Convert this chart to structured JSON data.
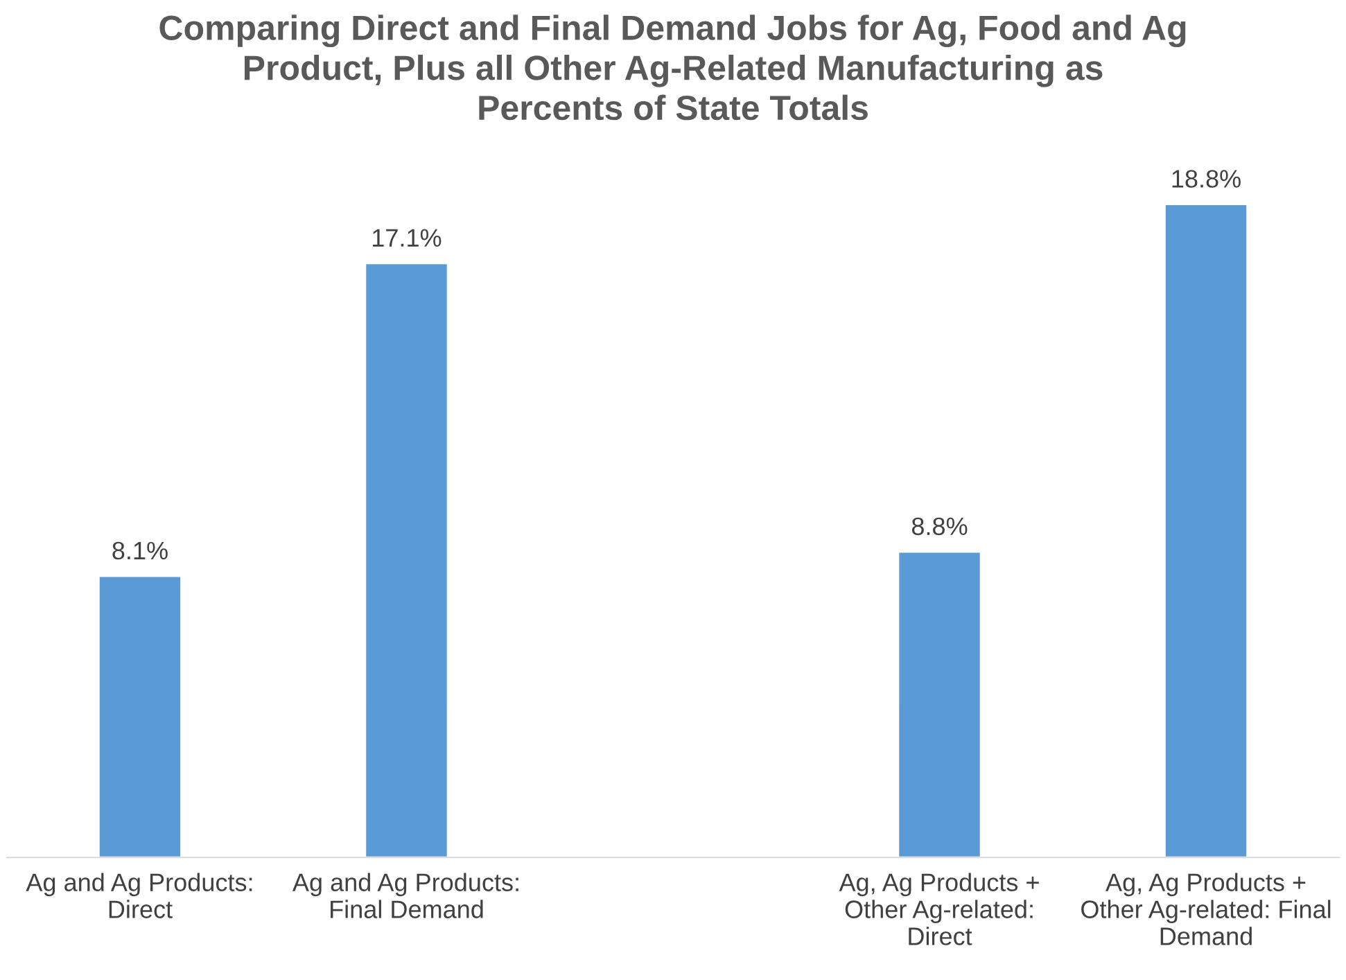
{
  "chart_data": {
    "type": "bar",
    "title": "Comparing Direct and Final Demand Jobs for Ag, Food and Ag\nProduct, Plus all Other Ag-Related Manufacturing as\nPercents of State Totals",
    "categories": [
      "Ag and Ag Products:\nDirect",
      "Ag and Ag Products:\nFinal Demand",
      null,
      "Ag, Ag Products +\nOther Ag-related:\nDirect",
      "Ag, Ag Products +\nOther Ag-related: Final\nDemand"
    ],
    "values": [
      8.1,
      17.1,
      null,
      8.8,
      18.8
    ],
    "value_labels": [
      "8.1%",
      "17.1%",
      null,
      "8.8%",
      "18.8%"
    ],
    "color": "#5b9bd5"
  }
}
